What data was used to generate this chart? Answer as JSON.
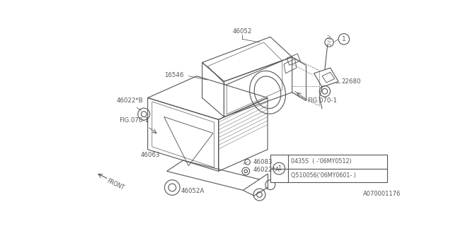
{
  "bg_color": "#ffffff",
  "line_color": "#555555",
  "fig_width": 6.4,
  "fig_height": 3.2,
  "dpi": 100,
  "watermark": "A070001176",
  "legend_line1": "0435S  ( -’06MY0512)",
  "legend_line2": "Q510056(’06MY0601- )"
}
